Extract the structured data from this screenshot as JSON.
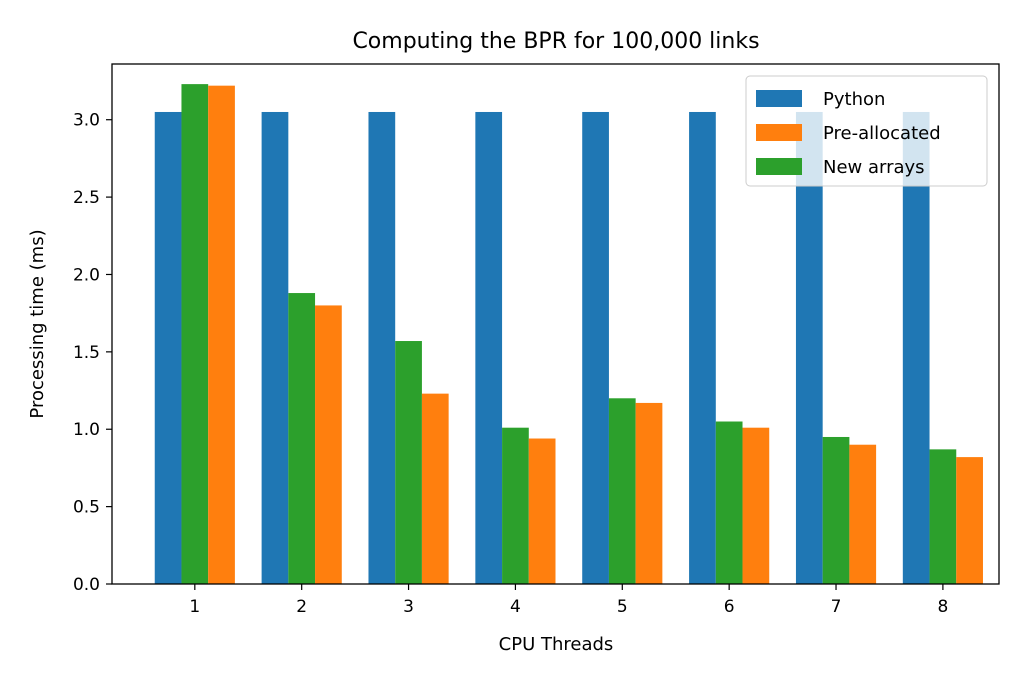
{
  "chart_data": {
    "type": "bar",
    "title": "Computing the BPR for 100,000 links",
    "xlabel": "CPU Threads",
    "ylabel": "Processing time (ms)",
    "categories": [
      "1",
      "2",
      "3",
      "4",
      "5",
      "6",
      "7",
      "8"
    ],
    "ylim": [
      0,
      3.36
    ],
    "yticks": [
      "0.0",
      "0.5",
      "1.0",
      "1.5",
      "2.0",
      "2.5",
      "3.0"
    ],
    "legend_position": "top-right",
    "grid": false,
    "series": [
      {
        "name": "Python",
        "color": "#1f77b4",
        "values": [
          3.05,
          3.05,
          3.05,
          3.05,
          3.05,
          3.05,
          3.05,
          3.05
        ]
      },
      {
        "name": "New arrays",
        "color": "#2ca02c",
        "values": [
          3.23,
          1.88,
          1.57,
          1.01,
          1.2,
          1.05,
          0.95,
          0.87
        ]
      },
      {
        "name": "Pre-allocated",
        "color": "#ff7f0e",
        "values": [
          3.22,
          1.8,
          1.23,
          0.94,
          1.17,
          1.01,
          0.9,
          0.82
        ]
      }
    ],
    "legend_order": [
      "Python",
      "Pre-allocated",
      "New arrays"
    ]
  }
}
